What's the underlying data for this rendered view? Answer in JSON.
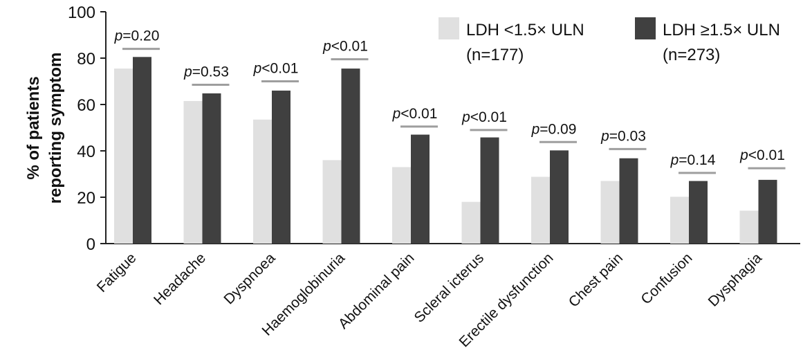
{
  "chart_data": {
    "type": "bar",
    "title": "",
    "xlabel": "",
    "ylabel_lines": [
      "% of patients",
      "reporting symptom"
    ],
    "ylim": [
      0,
      100
    ],
    "yticks": [
      0,
      20,
      40,
      60,
      80,
      100
    ],
    "categories": [
      "Fatigue",
      "Headache",
      "Dyspnoea",
      "Haemoglobinuria",
      "Abdominal pain",
      "Scleral icterus",
      "Erectile dysfunction",
      "Chest pain",
      "Confusion",
      "Dysphagia"
    ],
    "series": [
      {
        "name_lines": [
          "LDH <1.5× ULN",
          "(n=177)"
        ],
        "color": "#e0e0e0",
        "values": [
          75.5,
          61.5,
          53.5,
          36,
          33,
          18,
          28.8,
          27,
          20.2,
          14.2
        ]
      },
      {
        "name_lines": [
          "LDH ≥1.5× ULN",
          "(n=273)"
        ],
        "color": "#404040",
        "values": [
          80.5,
          64.8,
          66,
          75.5,
          47,
          45.8,
          40.2,
          36.8,
          27,
          27.5
        ]
      }
    ],
    "annotations": [
      {
        "category": "Fatigue",
        "p_symbol": "p",
        "p_text": "=0.20",
        "bracket_y": 84
      },
      {
        "category": "Headache",
        "p_symbol": "p",
        "p_text": "=0.53",
        "bracket_y": 68.5
      },
      {
        "category": "Dyspnoea",
        "p_symbol": "p",
        "p_text": "<0.01",
        "bracket_y": 70
      },
      {
        "category": "Haemoglobinuria",
        "p_symbol": "p",
        "p_text": "<0.01",
        "bracket_y": 79.5
      },
      {
        "category": "Abdominal pain",
        "p_symbol": "p",
        "p_text": "<0.01",
        "bracket_y": 50.5
      },
      {
        "category": "Scleral icterus",
        "p_symbol": "p",
        "p_text": "<0.01",
        "bracket_y": 49
      },
      {
        "category": "Erectile dysfunction",
        "p_symbol": "p",
        "p_text": "=0.09",
        "bracket_y": 43.8
      },
      {
        "category": "Chest pain",
        "p_symbol": "p",
        "p_text": "=0.03",
        "bracket_y": 40.8
      },
      {
        "category": "Confusion",
        "p_symbol": "p",
        "p_text": "=0.14",
        "bracket_y": 30.5
      },
      {
        "category": "Dysphagia",
        "p_symbol": "p",
        "p_text": "<0.01",
        "bracket_y": 32.5
      }
    ],
    "grid": false,
    "legend_position": "top-right",
    "bracket_color": "#9e9e9e"
  }
}
